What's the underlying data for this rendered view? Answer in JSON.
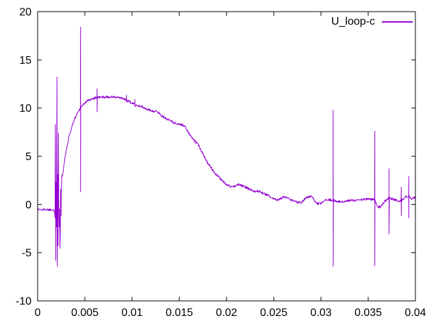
{
  "chart_data": {
    "type": "line",
    "title": "",
    "xlabel": "",
    "ylabel": "",
    "xlim": [
      0,
      0.04
    ],
    "ylim": [
      -10,
      20
    ],
    "grid": false,
    "border": true,
    "tick_style": "inward-mirrored",
    "background_color": "#ffffff",
    "border_color": "#000000",
    "text_color": "#000000",
    "xticks": {
      "values": [
        0,
        0.005,
        0.01,
        0.015,
        0.02,
        0.025,
        0.03,
        0.035,
        0.04
      ],
      "labels": [
        "0",
        "0.005",
        "0.01",
        "0.015",
        "0.02",
        "0.025",
        "0.03",
        "0.035",
        "0.04"
      ]
    },
    "yticks": {
      "values": [
        -10,
        -5,
        0,
        5,
        10,
        15,
        20
      ],
      "labels": [
        "-10",
        "-5",
        "0",
        "5",
        "10",
        "15",
        "20"
      ]
    },
    "legend": {
      "position": "top-right-inside"
    },
    "series": [
      {
        "name": "U_loop-c",
        "color": "#9400d3",
        "keypoints": [
          [
            0.0,
            -0.5
          ],
          [
            0.0004,
            -0.55
          ],
          [
            0.0008,
            -0.5
          ],
          [
            0.0012,
            -0.55
          ],
          [
            0.0016,
            -0.5
          ],
          [
            0.00175,
            -0.55
          ],
          [
            0.00179,
            -1.3
          ],
          [
            0.00182,
            0.3
          ],
          [
            0.00185,
            -2.2
          ],
          [
            0.00189,
            11.8
          ],
          [
            0.00192,
            -5.9
          ],
          [
            0.00196,
            2.2
          ],
          [
            0.00199,
            -6.3
          ],
          [
            0.00204,
            13.35
          ],
          [
            0.00208,
            -6.3
          ],
          [
            0.00212,
            3.2
          ],
          [
            0.00216,
            -4.2
          ],
          [
            0.00221,
            10.45
          ],
          [
            0.00226,
            -6.35
          ],
          [
            0.0023,
            1.8
          ],
          [
            0.00234,
            -2.6
          ],
          [
            0.00238,
            -6.3
          ],
          [
            0.00243,
            2.2
          ],
          [
            0.00248,
            -1.2
          ],
          [
            0.00253,
            3.1
          ],
          [
            0.0026,
            2.9
          ],
          [
            0.0027,
            3.5
          ],
          [
            0.0029,
            4.9
          ],
          [
            0.0031,
            5.9
          ],
          [
            0.0033,
            6.9
          ],
          [
            0.0036,
            8.0
          ],
          [
            0.0039,
            8.85
          ],
          [
            0.0042,
            9.45
          ],
          [
            0.0045,
            9.95
          ],
          [
            0.0048,
            10.35
          ],
          [
            0.0052,
            10.7
          ],
          [
            0.0057,
            10.95
          ],
          [
            0.0062,
            11.1
          ],
          [
            0.007,
            11.15
          ],
          [
            0.008,
            11.15
          ],
          [
            0.009,
            11.0
          ],
          [
            0.0095,
            10.75
          ],
          [
            0.01,
            10.5
          ],
          [
            0.0105,
            10.3
          ],
          [
            0.011,
            10.15
          ],
          [
            0.0115,
            9.9
          ],
          [
            0.012,
            9.75
          ],
          [
            0.0127,
            9.6
          ],
          [
            0.0134,
            9.0
          ],
          [
            0.0141,
            8.7
          ],
          [
            0.0146,
            8.4
          ],
          [
            0.0152,
            8.3
          ],
          [
            0.0156,
            8.1
          ],
          [
            0.016,
            7.4
          ],
          [
            0.0165,
            6.7
          ],
          [
            0.017,
            6.2
          ],
          [
            0.0175,
            5.3
          ],
          [
            0.018,
            4.3
          ],
          [
            0.0185,
            3.6
          ],
          [
            0.019,
            3.0
          ],
          [
            0.0195,
            2.55
          ],
          [
            0.02,
            2.05
          ],
          [
            0.0205,
            1.85
          ],
          [
            0.021,
            1.9
          ],
          [
            0.0213,
            2.1
          ],
          [
            0.0216,
            1.95
          ],
          [
            0.022,
            1.8
          ],
          [
            0.0225,
            1.55
          ],
          [
            0.023,
            1.4
          ],
          [
            0.0235,
            1.35
          ],
          [
            0.024,
            1.1
          ],
          [
            0.0245,
            0.9
          ],
          [
            0.025,
            0.6
          ],
          [
            0.0255,
            0.5
          ],
          [
            0.026,
            0.75
          ],
          [
            0.0264,
            0.7
          ],
          [
            0.0268,
            0.45
          ],
          [
            0.0273,
            0.3
          ],
          [
            0.0279,
            0.2
          ],
          [
            0.0284,
            0.7
          ],
          [
            0.029,
            0.85
          ],
          [
            0.0295,
            0.1
          ],
          [
            0.0299,
            0.05
          ],
          [
            0.0303,
            0.35
          ],
          [
            0.0308,
            0.5
          ],
          [
            0.0313,
            0.45
          ],
          [
            0.0318,
            0.3
          ],
          [
            0.0324,
            0.25
          ],
          [
            0.033,
            0.4
          ],
          [
            0.0337,
            0.45
          ],
          [
            0.0343,
            0.5
          ],
          [
            0.035,
            0.55
          ],
          [
            0.0357,
            0.5
          ],
          [
            0.036,
            -0.2
          ],
          [
            0.0363,
            -0.3
          ],
          [
            0.0367,
            0.3
          ],
          [
            0.0372,
            0.7
          ],
          [
            0.0377,
            0.5
          ],
          [
            0.0381,
            0.4
          ],
          [
            0.0385,
            0.4
          ],
          [
            0.0389,
            0.8
          ],
          [
            0.0393,
            0.9
          ],
          [
            0.0396,
            0.6
          ],
          [
            0.0399,
            0.75
          ],
          [
            0.04,
            0.6
          ]
        ],
        "spikes": [
          [
            0.00454,
            18.4,
            1.3
          ],
          [
            0.0063,
            12.0,
            9.6
          ],
          [
            0.0094,
            11.35,
            10.6
          ],
          [
            0.0103,
            10.9,
            10.15
          ],
          [
            0.0313,
            9.8,
            -6.4
          ],
          [
            0.0357,
            7.6,
            -6.35
          ],
          [
            0.0372,
            3.7,
            -3.05
          ],
          [
            0.0385,
            1.8,
            -1.15
          ],
          [
            0.0393,
            2.9,
            -1.4
          ]
        ],
        "noise": {
          "amplitude": 0.13,
          "seed": 1337,
          "step": 4e-05
        }
      }
    ]
  }
}
